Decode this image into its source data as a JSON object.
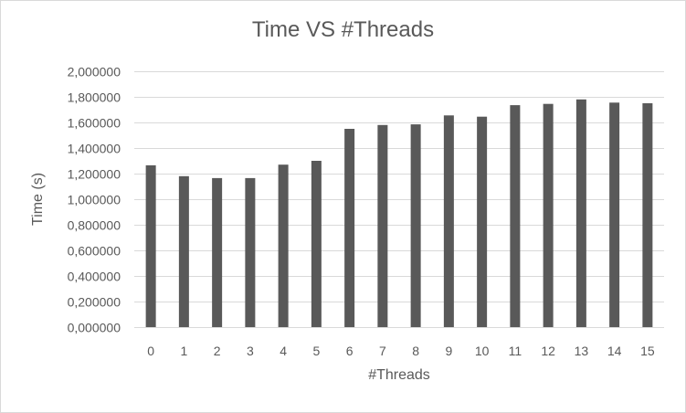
{
  "chart_data": {
    "type": "bar",
    "title": "Time VS #Threads",
    "xlabel": "#Threads",
    "ylabel": "Time (s)",
    "categories": [
      "0",
      "1",
      "2",
      "3",
      "4",
      "5",
      "6",
      "7",
      "8",
      "9",
      "10",
      "11",
      "12",
      "13",
      "14",
      "15"
    ],
    "values": [
      1.265,
      1.18,
      1.165,
      1.165,
      1.27,
      1.3,
      1.55,
      1.58,
      1.585,
      1.655,
      1.645,
      1.735,
      1.745,
      1.78,
      1.755,
      1.75
    ],
    "ylim": [
      0,
      2
    ],
    "ytick_values": [
      0,
      0.2,
      0.4,
      0.6,
      0.8,
      1.0,
      1.2,
      1.4,
      1.6,
      1.8,
      2.0
    ],
    "ytick_labels": [
      "0,000000",
      "0,200000",
      "0,400000",
      "0,600000",
      "0,800000",
      "1,000000",
      "1,200000",
      "1,400000",
      "1,600000",
      "1,800000",
      "2,000000"
    ],
    "grid": true,
    "legend": "none",
    "bar_color": "#595959",
    "grid_color": "#d9d9d9"
  }
}
